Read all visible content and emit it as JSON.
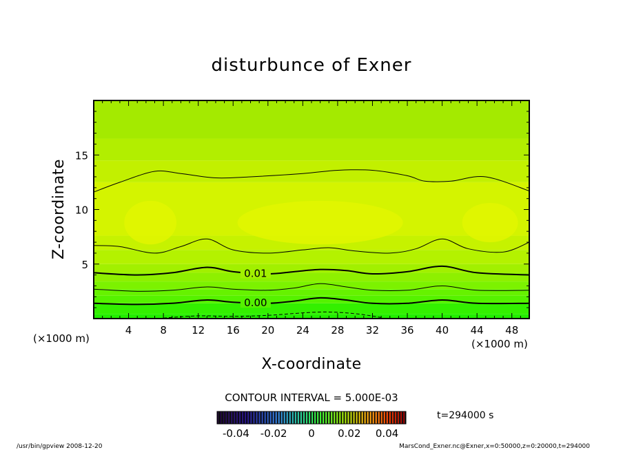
{
  "chart_data": {
    "type": "heatmap",
    "title": "disturbunce of Exner",
    "xlabel": "X-coordinate",
    "ylabel": "Z-coordinate",
    "x_unit": "(×1000 m)",
    "y_unit": "(×1000 m)",
    "xlim": [
      0,
      50
    ],
    "ylim": [
      0,
      20
    ],
    "x_ticks": [
      "4",
      "8",
      "12",
      "16",
      "20",
      "24",
      "28",
      "32",
      "36",
      "40",
      "44",
      "48"
    ],
    "y_ticks": [
      "5",
      "10",
      "15"
    ],
    "x_tick_values": [
      4,
      8,
      12,
      16,
      20,
      24,
      28,
      32,
      36,
      40,
      44,
      48
    ],
    "y_tick_values": [
      5,
      10,
      15
    ],
    "contour_interval_label": "CONTOUR INTERVAL = 5.000E-03",
    "contour_labels": [
      {
        "text": "0.01",
        "x": 17.0,
        "z": 4.2
      },
      {
        "text": "0.00",
        "x": 17.0,
        "z": 1.5
      }
    ],
    "contours": [
      {
        "level": -0.005,
        "style": "dashed",
        "x": [
          8,
          12,
          16,
          20,
          26,
          30,
          33
        ],
        "z": [
          0.05,
          0.25,
          0.2,
          0.3,
          0.6,
          0.45,
          0.1
        ]
      },
      {
        "level": 0.0,
        "style": "bold",
        "x": [
          0,
          5,
          9,
          13,
          16,
          20,
          23,
          26,
          29,
          32,
          36,
          40,
          44,
          50
        ],
        "z": [
          1.4,
          1.3,
          1.4,
          1.7,
          1.5,
          1.4,
          1.6,
          1.9,
          1.7,
          1.4,
          1.4,
          1.7,
          1.4,
          1.4
        ]
      },
      {
        "level": 0.005,
        "style": "thin",
        "x": [
          0,
          5,
          9,
          13,
          16,
          20,
          23,
          26,
          29,
          32,
          36,
          40,
          44,
          50
        ],
        "z": [
          2.7,
          2.5,
          2.6,
          2.9,
          2.7,
          2.6,
          2.8,
          3.2,
          2.9,
          2.6,
          2.6,
          3.0,
          2.6,
          2.6
        ]
      },
      {
        "level": 0.01,
        "style": "bold",
        "x": [
          0,
          5,
          9,
          13,
          16,
          20,
          23,
          26,
          29,
          32,
          36,
          40,
          44,
          50
        ],
        "z": [
          4.2,
          4.0,
          4.2,
          4.7,
          4.3,
          4.1,
          4.3,
          4.5,
          4.4,
          4.1,
          4.3,
          4.8,
          4.2,
          4.0
        ]
      },
      {
        "level": 0.015,
        "style": "thin",
        "x": [
          0,
          3,
          7,
          10,
          13,
          16,
          20,
          24,
          27,
          30,
          34,
          37,
          40,
          43,
          47,
          50
        ],
        "z": [
          6.7,
          6.6,
          6.0,
          6.6,
          7.3,
          6.3,
          6.0,
          6.3,
          6.5,
          6.2,
          6.0,
          6.4,
          7.3,
          6.4,
          6.1,
          7.0
        ]
      },
      {
        "level": 0.015,
        "style": "thin",
        "x": [
          0,
          3,
          7,
          10,
          14,
          18,
          24,
          28,
          32,
          36,
          38,
          41,
          45,
          50
        ],
        "z": [
          11.6,
          12.5,
          13.5,
          13.3,
          12.9,
          13.0,
          13.3,
          13.6,
          13.6,
          13.1,
          12.6,
          12.6,
          13.0,
          11.7
        ]
      }
    ],
    "color_bands": [
      {
        "zmin": 0.0,
        "zmax": 0.4,
        "color": "#22ee00"
      },
      {
        "zmin": 0.4,
        "zmax": 1.4,
        "color": "#33f000"
      },
      {
        "zmin": 1.4,
        "zmax": 2.1,
        "color": "#55f200"
      },
      {
        "zmin": 2.1,
        "zmax": 2.7,
        "color": "#66f200"
      },
      {
        "zmin": 2.7,
        "zmax": 3.4,
        "color": "#7cf200"
      },
      {
        "zmin": 3.4,
        "zmax": 4.2,
        "color": "#8ef000"
      },
      {
        "zmin": 4.2,
        "zmax": 5.0,
        "color": "#a2f000"
      },
      {
        "zmin": 5.0,
        "zmax": 6.3,
        "color": "#b4f200"
      },
      {
        "zmin": 6.3,
        "zmax": 7.6,
        "color": "#c6f200"
      },
      {
        "zmin": 7.6,
        "zmax": 12.5,
        "color": "#d4f400"
      },
      {
        "zmin": 12.5,
        "zmax": 14.5,
        "color": "#c2f000"
      },
      {
        "zmin": 14.5,
        "zmax": 16.5,
        "color": "#b2ee00"
      },
      {
        "zmin": 16.5,
        "zmax": 20.0,
        "color": "#a4ea00"
      }
    ],
    "highlight_blobs": [
      {
        "x": 6.5,
        "z": 8.8,
        "rx": 3.0,
        "rz": 2.0,
        "color": "#e2f600"
      },
      {
        "x": 26.0,
        "z": 8.8,
        "rx": 9.5,
        "rz": 2.0,
        "color": "#e2f600"
      },
      {
        "x": 45.5,
        "z": 8.8,
        "rx": 3.2,
        "rz": 1.8,
        "color": "#e2f600"
      }
    ],
    "colorbar": {
      "ticks": [
        "-0.04",
        "-0.02",
        "0",
        "0.02",
        "0.04"
      ],
      "tick_values": [
        -0.04,
        -0.02,
        0,
        0.02,
        0.04
      ],
      "range": [
        -0.05,
        0.05
      ]
    }
  },
  "time_label": "t=294000 s",
  "footer_left": "/usr/bin/gpview   2008-12-20",
  "footer_right": "MarsCond_Exner.nc@Exner,x=0:50000,z=0:20000,t=294000"
}
